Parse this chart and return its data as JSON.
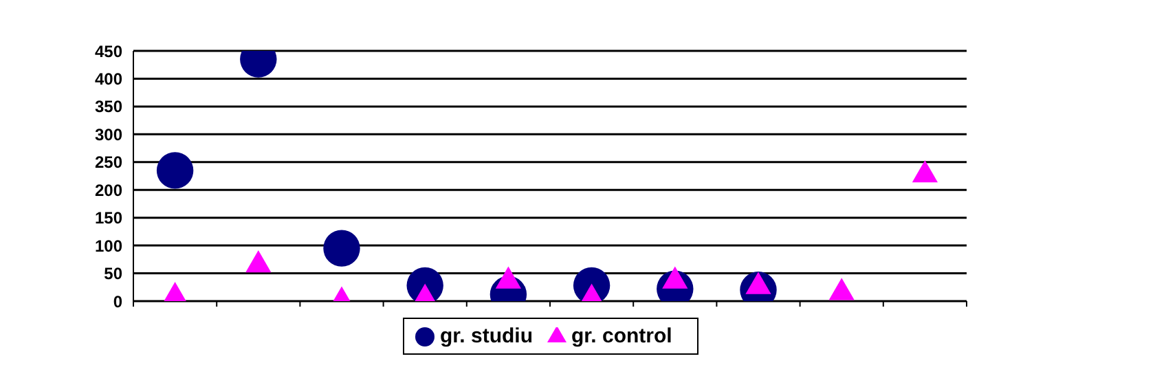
{
  "chart_data": {
    "type": "scatter",
    "categories": [
      null,
      null,
      null,
      null,
      null,
      null,
      null,
      null,
      null,
      null
    ],
    "series": [
      {
        "name": "gr. studiu",
        "color": "#000080",
        "marker": "circle",
        "values": [
          235,
          435,
          95,
          28,
          12,
          28,
          22,
          20,
          null,
          null
        ]
      },
      {
        "name": "gr. control",
        "color": "#ff00ff",
        "marker": "triangle",
        "values": [
          8,
          65,
          0,
          5,
          36,
          5,
          36,
          26,
          15,
          227
        ]
      }
    ],
    "ylim": [
      0,
      450
    ],
    "yticks": [
      0,
      50,
      100,
      150,
      200,
      250,
      300,
      350,
      400,
      450
    ],
    "grid": "y",
    "legend": "bottom"
  }
}
